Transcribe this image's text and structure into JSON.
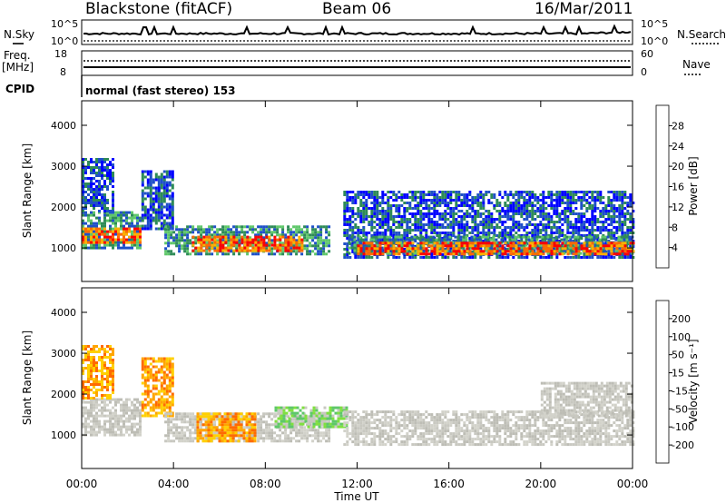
{
  "header": {
    "station": "Blackstone (fitACF)",
    "beam": "Beam 06",
    "date": "16/Mar/2011"
  },
  "top_panels": {
    "nsky_label": "N.Sky",
    "nsearch_label": "N.Search",
    "nsky_ticks": [
      "10^5",
      "10^0"
    ],
    "nsearch_ticks": [
      "10^5",
      "10^0"
    ],
    "freq_label": "Freq.",
    "freq_unit": "[MHz]",
    "freq_ticks": [
      "18",
      "8"
    ],
    "nave_label": "Nave",
    "nave_ticks": [
      "60",
      "0"
    ],
    "cpid_label": "CPID",
    "cpid_text": "normal (fast stereo) 153"
  },
  "chart_data": [
    {
      "type": "heatmap",
      "name": "power-panel",
      "xlabel": "Time UT",
      "ylabel": "Slant Range [km]",
      "xlim": [
        0,
        24
      ],
      "ylim": [
        180,
        4600
      ],
      "xticks": [
        "00:00",
        "04:00",
        "08:00",
        "12:00",
        "16:00",
        "20:00",
        "00:00"
      ],
      "yticks": [
        1000,
        2000,
        3000,
        4000
      ],
      "colorbar": {
        "label": "Power [dB]",
        "ticks": [
          "28",
          "24",
          "20",
          "16",
          "12",
          "8",
          "4"
        ],
        "colors": [
          "#0000ff",
          "#1f50c8",
          "#2e8b57",
          "#5fc76a",
          "#ffff00",
          "#ffb000",
          "#ff6a00",
          "#ff0000"
        ]
      },
      "bands": [
        {
          "t0": 0.0,
          "t1": 2.6,
          "r0": 1000,
          "r1": 1900,
          "level": "mid"
        },
        {
          "t0": 0.0,
          "t1": 2.6,
          "r0": 1150,
          "r1": 1500,
          "level": "high"
        },
        {
          "t0": 0.0,
          "t1": 1.4,
          "r0": 1900,
          "r1": 3200,
          "level": "low"
        },
        {
          "t0": 2.6,
          "t1": 4.0,
          "r0": 1500,
          "r1": 2900,
          "level": "low"
        },
        {
          "t0": 3.6,
          "t1": 10.8,
          "r0": 850,
          "r1": 1550,
          "level": "mid"
        },
        {
          "t0": 4.8,
          "t1": 9.6,
          "r0": 950,
          "r1": 1300,
          "level": "high"
        },
        {
          "t0": 11.4,
          "t1": 24.0,
          "r0": 800,
          "r1": 2400,
          "level": "low"
        },
        {
          "t0": 11.6,
          "t1": 24.0,
          "r0": 850,
          "r1": 1300,
          "level": "mid"
        },
        {
          "t0": 12.0,
          "t1": 24.0,
          "r0": 880,
          "r1": 1150,
          "level": "high"
        }
      ]
    },
    {
      "type": "heatmap",
      "name": "velocity-panel",
      "xlabel": "Time UT",
      "ylabel": "Slant Range [km]",
      "xlim": [
        0,
        24
      ],
      "ylim": [
        180,
        4600
      ],
      "xticks": [
        "00:00",
        "04:00",
        "08:00",
        "12:00",
        "16:00",
        "20:00",
        "00:00"
      ],
      "yticks": [
        1000,
        2000,
        3000,
        4000
      ],
      "colorbar": {
        "label": "Velocity [m s⁻¹]",
        "ticks": [
          "200",
          "100",
          "50",
          "15",
          "-15",
          "-50",
          "-100",
          "-200"
        ],
        "colors": [
          "#ff0000",
          "#ff6a00",
          "#ffa500",
          "#ffd000",
          "#c8c8c0",
          "#80e040",
          "#2e8b57",
          "#1f50c8",
          "#0000ff"
        ]
      },
      "bands": [
        {
          "t0": 0.0,
          "t1": 2.6,
          "r0": 1000,
          "r1": 1900,
          "level": "ground"
        },
        {
          "t0": 0.0,
          "t1": 1.4,
          "r0": 1900,
          "r1": 3200,
          "level": "neg"
        },
        {
          "t0": 2.6,
          "t1": 4.0,
          "r0": 1500,
          "r1": 2900,
          "level": "neg"
        },
        {
          "t0": 3.6,
          "t1": 10.8,
          "r0": 850,
          "r1": 1550,
          "level": "ground"
        },
        {
          "t0": 5.0,
          "t1": 7.6,
          "r0": 850,
          "r1": 1550,
          "level": "neg"
        },
        {
          "t0": 8.4,
          "t1": 11.6,
          "r0": 1200,
          "r1": 1700,
          "level": "pos"
        },
        {
          "t0": 11.4,
          "t1": 24.0,
          "r0": 800,
          "r1": 1600,
          "level": "ground"
        },
        {
          "t0": 20.0,
          "t1": 24.0,
          "r0": 1500,
          "r1": 2300,
          "level": "ground"
        }
      ]
    }
  ]
}
